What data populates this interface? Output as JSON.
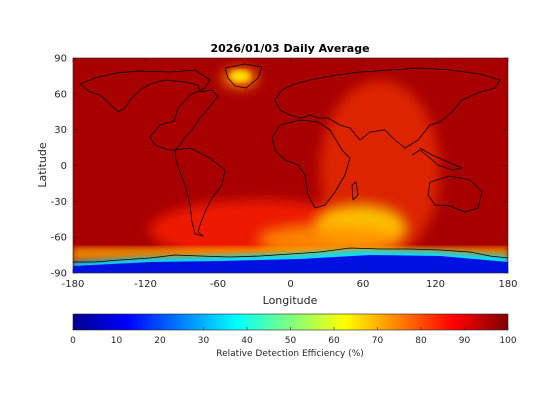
{
  "chart_data": {
    "type": "heatmap",
    "title": "2026/01/03 Daily Average",
    "xlabel": "Longitude",
    "ylabel": "Latitude",
    "xlim": [
      -180,
      180
    ],
    "ylim": [
      -90,
      90
    ],
    "x_ticks": [
      -180,
      -120,
      -60,
      0,
      60,
      120,
      180
    ],
    "y_ticks": [
      90,
      60,
      30,
      0,
      -30,
      -60,
      -90
    ],
    "colorbar": {
      "label": "Relative Detection Efficiency (%)",
      "range": [
        0,
        100
      ],
      "ticks": [
        0,
        10,
        20,
        30,
        40,
        50,
        60,
        70,
        80,
        90,
        100
      ],
      "colormap": "jet",
      "colormap_colors": [
        "#00008f",
        "#0000ff",
        "#00ffff",
        "#ffff00",
        "#ff0000",
        "#800000"
      ]
    },
    "features": [
      {
        "region": "Antarctica (south of about -75)",
        "value_approx": 5
      },
      {
        "region": "Antarctic margin band",
        "value_approx": 45
      },
      {
        "region": "Southern Indian Ocean (around 0 to 60 lon, -40 to -60 lat)",
        "value_approx": 68
      },
      {
        "region": "Greenland interior",
        "value_approx": 72
      },
      {
        "region": "Background oceans and land",
        "value_approx": 92
      }
    ]
  }
}
